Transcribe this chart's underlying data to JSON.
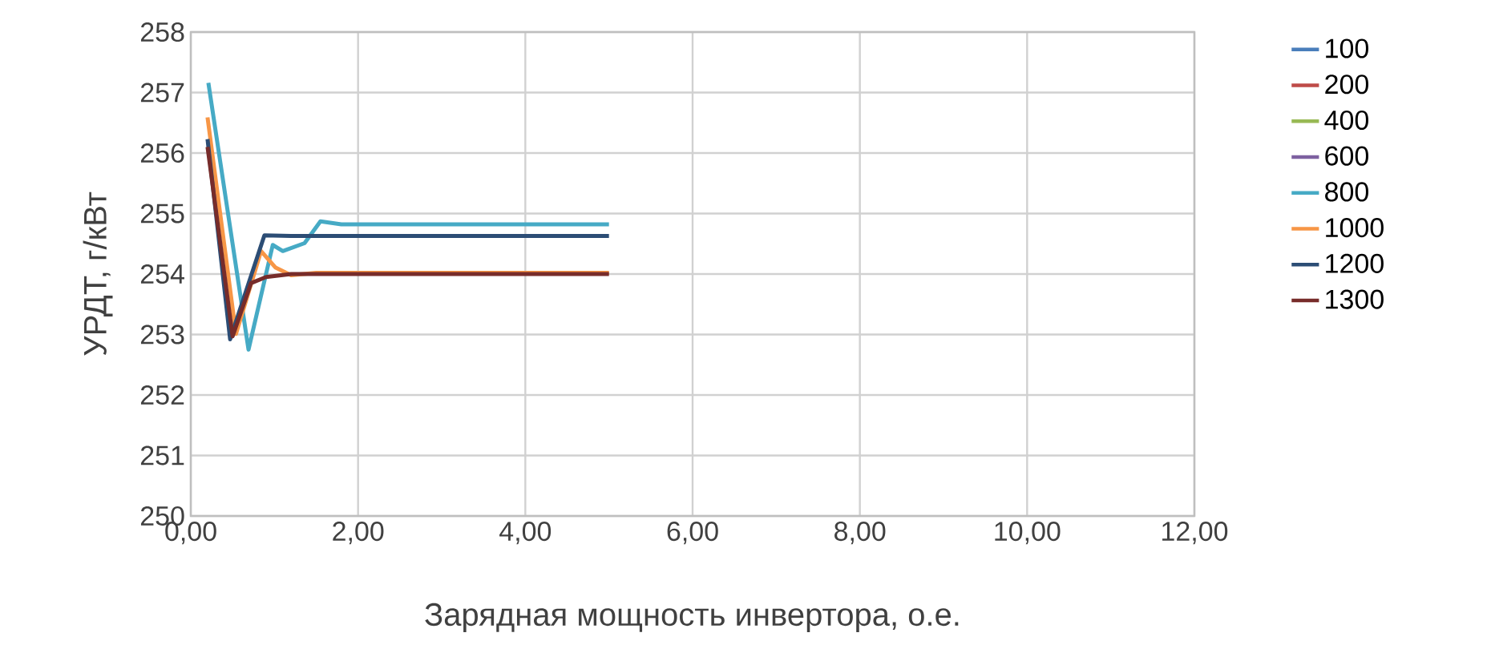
{
  "chart_data": {
    "type": "line",
    "xlabel": "Зарядная мощность инвертора, о.е.",
    "ylabel": "УРДТ, г/кВт",
    "xlim": [
      0,
      12
    ],
    "ylim": [
      250,
      258
    ],
    "xticks": [
      {
        "value": 0,
        "label": "0,00"
      },
      {
        "value": 2,
        "label": "2,00"
      },
      {
        "value": 4,
        "label": "4,00"
      },
      {
        "value": 6,
        "label": "6,00"
      },
      {
        "value": 8,
        "label": "8,00"
      },
      {
        "value": 10,
        "label": "10,00"
      },
      {
        "value": 12,
        "label": "12,00"
      }
    ],
    "yticks": [
      250,
      251,
      252,
      253,
      254,
      255,
      256,
      257,
      258
    ],
    "grid": true,
    "legend": "right",
    "marker": "none",
    "line_style": "solid",
    "series": [
      {
        "name": "100",
        "color": "#4a7ebb"
      },
      {
        "name": "200",
        "color": "#be4b48"
      },
      {
        "name": "400",
        "color": "#98b954"
      },
      {
        "name": "600",
        "color": "#7d60a0"
      },
      {
        "name": "800",
        "color": "#46aac5",
        "x": [
          0.21,
          0.69,
          0.98,
          1.1,
          1.36,
          1.55,
          1.8,
          5
        ],
        "values": [
          257.16,
          252.75,
          254.48,
          254.38,
          254.51,
          254.87,
          254.82,
          254.82
        ]
      },
      {
        "name": "1000",
        "color": "#f79646",
        "x": [
          0.2,
          0.54,
          0.84,
          1.01,
          1.2,
          1.5,
          5
        ],
        "values": [
          256.59,
          253.01,
          254.38,
          254.11,
          253.98,
          254.02,
          254.02
        ]
      },
      {
        "name": "1200",
        "color": "#2c4d75",
        "x": [
          0.2,
          0.47,
          0.88,
          1.2,
          5
        ],
        "values": [
          256.23,
          252.92,
          254.64,
          254.63,
          254.63
        ]
      },
      {
        "name": "1300",
        "color": "#772c2a",
        "x": [
          0.2,
          0.5,
          0.72,
          0.9,
          1.2,
          5
        ],
        "values": [
          256.1,
          252.97,
          253.85,
          253.95,
          254.0,
          254.0
        ]
      }
    ]
  }
}
